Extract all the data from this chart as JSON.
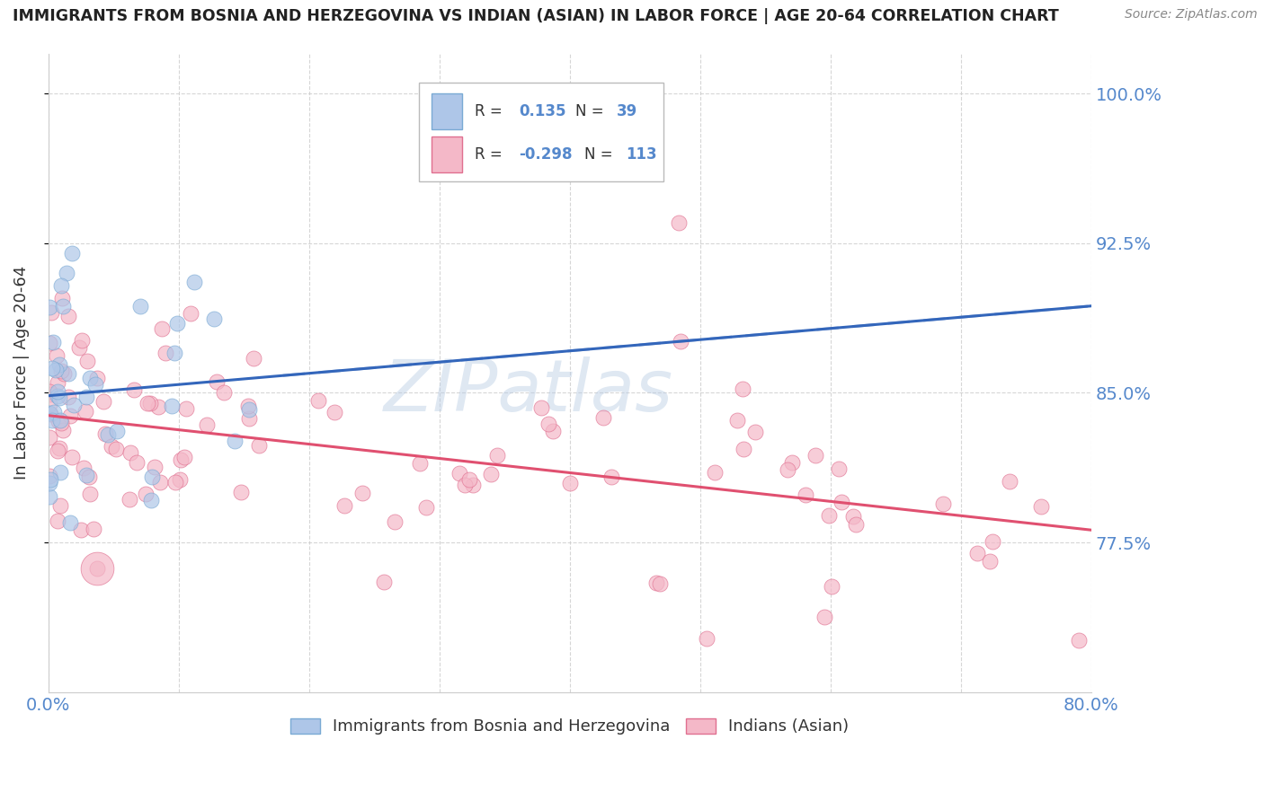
{
  "title": "IMMIGRANTS FROM BOSNIA AND HERZEGOVINA VS INDIAN (ASIAN) IN LABOR FORCE | AGE 20-64 CORRELATION CHART",
  "source": "Source: ZipAtlas.com",
  "ylabel": "In Labor Force | Age 20-64",
  "watermark": "ZIPatlas",
  "xlim": [
    0.0,
    0.8
  ],
  "ylim": [
    0.7,
    1.02
  ],
  "yticks": [
    0.775,
    0.85,
    0.925,
    1.0
  ],
  "ytick_labels": [
    "77.5%",
    "85.0%",
    "92.5%",
    "100.0%"
  ],
  "xtick_labels": [
    "0.0%",
    "",
    "",
    "",
    "",
    "",
    "",
    "",
    "80.0%"
  ],
  "series1_color": "#aec6e8",
  "series1_edgecolor": "#7aaad4",
  "series1_label": "Immigrants from Bosnia and Herzegovina",
  "series1_R": 0.135,
  "series1_N": 39,
  "series1_line_color": "#3366bb",
  "series2_color": "#f4b8c8",
  "series2_edgecolor": "#e07090",
  "series2_label": "Indians (Asian)",
  "series2_R": -0.298,
  "series2_N": 113,
  "series2_line_color": "#e05070",
  "grid_color": "#cccccc",
  "grid_style": "--",
  "background_color": "#ffffff",
  "tick_color": "#5588cc",
  "legend_box_color1": "#aec6e8",
  "legend_box_border1": "#7aaad4",
  "legend_box_color2": "#f4b8c8",
  "legend_box_border2": "#e07090",
  "scatter_size": 150,
  "scatter_alpha": 0.7
}
